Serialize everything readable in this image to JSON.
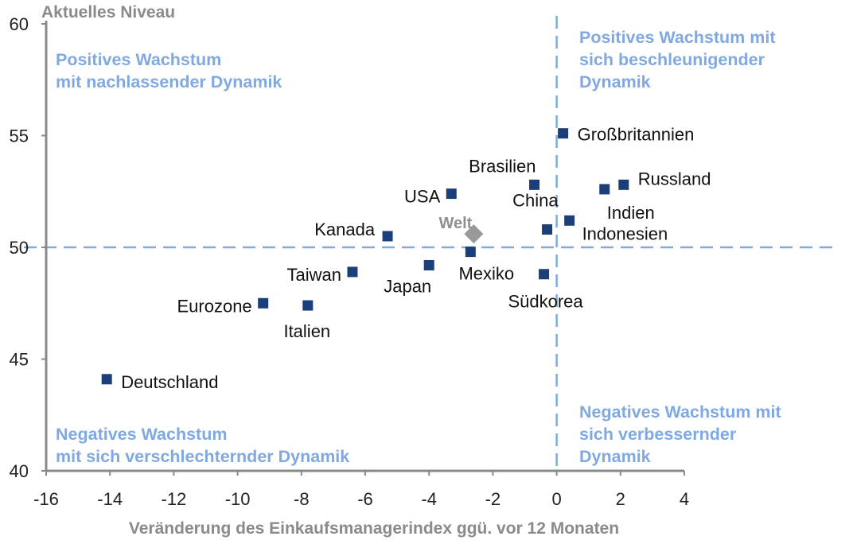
{
  "chart_data": {
    "type": "scatter",
    "title": "",
    "xlabel": "Veränderung des Einkaufsmanagerindex ggü. vor 12 Monaten",
    "ylabel": "Aktuelles Niveau",
    "xlim": [
      -16,
      4
    ],
    "ylim": [
      40,
      60
    ],
    "xticks": [
      "-16",
      "-14",
      "-12",
      "-10",
      "-8",
      "-6",
      "-4",
      "-2",
      "0",
      "2",
      "4"
    ],
    "yticks": [
      "40",
      "45",
      "50",
      "55",
      "60"
    ],
    "reference_lines": {
      "x": 0,
      "y": 50
    },
    "colors": {
      "points": "#1b3f7a",
      "welt": "#999999",
      "quadrant_text": "#7fa9e0",
      "axis_title": "#8a8a8a",
      "reference": "#7fa9e0"
    },
    "quadrants": {
      "top_left": [
        "Positives Wachstum",
        "mit nachlassender Dynamik"
      ],
      "top_right": [
        "Positives Wachstum mit",
        "sich beschleunigender",
        "Dynamik"
      ],
      "bottom_left": [
        "Negatives Wachstum",
        "mit sich verschlechternder Dynamik"
      ],
      "bottom_right": [
        "Negatives Wachstum mit",
        "sich verbessernder",
        "Dynamik"
      ]
    },
    "points": [
      {
        "label": "Großbritannien",
        "x": 0.2,
        "y": 55.1
      },
      {
        "label": "Brasilien",
        "x": -0.7,
        "y": 52.8
      },
      {
        "label": "Russland",
        "x": 2.1,
        "y": 52.8
      },
      {
        "label": "Indien",
        "x": 1.5,
        "y": 52.6
      },
      {
        "label": "USA",
        "x": -3.3,
        "y": 52.4
      },
      {
        "label": "China",
        "x": 0.4,
        "y": 51.2
      },
      {
        "label": "Indonesien",
        "x": -0.3,
        "y": 50.8
      },
      {
        "label": "Kanada",
        "x": -5.3,
        "y": 50.5
      },
      {
        "label": "Mexiko",
        "x": -2.7,
        "y": 49.8
      },
      {
        "label": "Japan",
        "x": -4.0,
        "y": 49.2
      },
      {
        "label": "Taiwan",
        "x": -6.4,
        "y": 48.9
      },
      {
        "label": "Südkorea",
        "x": -0.4,
        "y": 48.8
      },
      {
        "label": "Eurozone",
        "x": -9.2,
        "y": 47.5
      },
      {
        "label": "Italien",
        "x": -7.8,
        "y": 47.4
      },
      {
        "label": "Deutschland",
        "x": -14.1,
        "y": 44.1
      }
    ],
    "highlight": {
      "label": "Welt",
      "x": -2.6,
      "y": 50.6
    }
  }
}
